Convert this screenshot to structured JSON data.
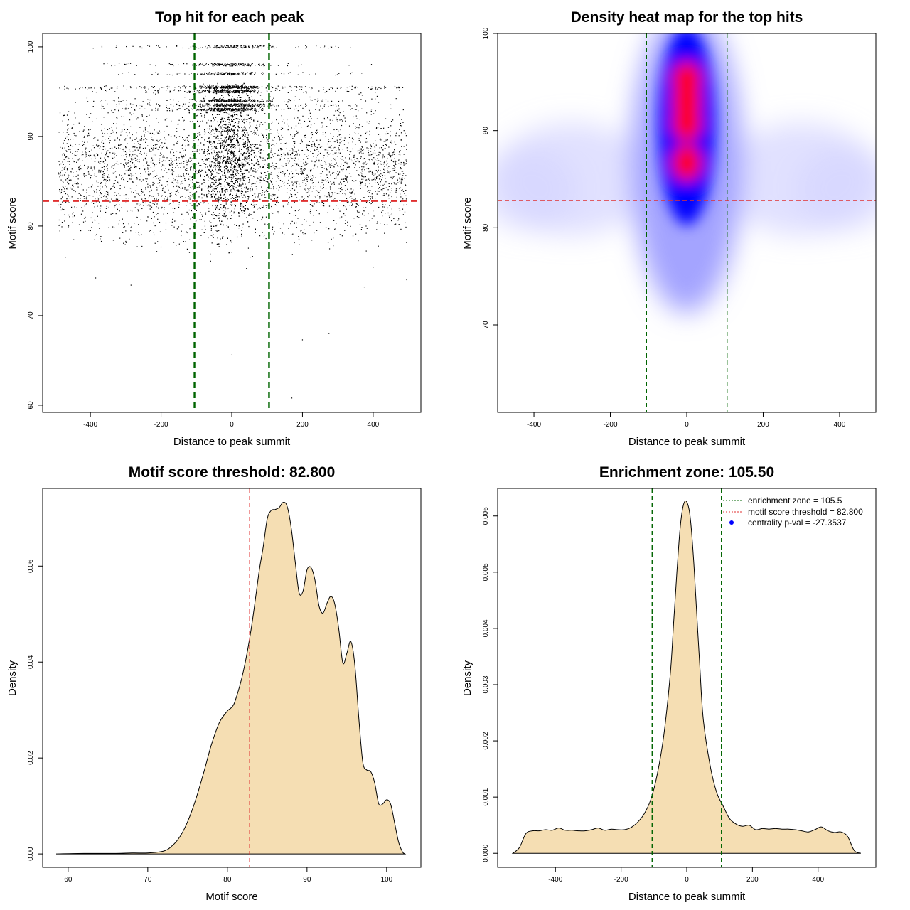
{
  "chart_data": [
    {
      "type": "scatter",
      "title": "Top hit for each peak",
      "xlabel": "Distance to peak summit",
      "ylabel": "Motif score",
      "xlim": [
        -535,
        535
      ],
      "ylim": [
        59.2,
        101.5
      ],
      "xticks": [
        -400,
        -200,
        0,
        200,
        400
      ],
      "yticks": [
        60,
        70,
        80,
        90,
        100
      ],
      "points_description_levels": [
        100,
        98,
        97,
        95.5,
        95,
        94,
        93.5,
        93
      ],
      "sparse_points": [
        {
          "x": 170,
          "y": 60.8
        },
        {
          "x": 0,
          "y": 65.6
        },
        {
          "x": 200,
          "y": 67.3
        },
        {
          "x": 275,
          "y": 68
        },
        {
          "x": -285,
          "y": 73.4
        },
        {
          "x": -385,
          "y": 74.2
        },
        {
          "x": 375,
          "y": 73.2
        },
        {
          "x": 495,
          "y": 74
        }
      ],
      "hlines": [
        {
          "y": 82.8,
          "color": "#e03030",
          "style": "dashed"
        }
      ],
      "vlines": [
        {
          "x": -105.5,
          "color": "#006400",
          "style": "dashed"
        },
        {
          "x": 105.5,
          "color": "#006400",
          "style": "dashed"
        }
      ],
      "grid": false
    },
    {
      "type": "heatmap",
      "title": "Density heat map for the top hits",
      "xlabel": "Distance to peak summit",
      "ylabel": "Motif score",
      "xlim": [
        -495,
        495
      ],
      "ylim": [
        61,
        100
      ],
      "xticks": [
        -400,
        -200,
        0,
        200,
        400
      ],
      "yticks": [
        70,
        80,
        90,
        100
      ],
      "hotspots": [
        {
          "x": 0,
          "y": 86.7,
          "level": "red"
        },
        {
          "x": 0,
          "y": 90.8,
          "level": "red"
        },
        {
          "x": 0,
          "y": 93,
          "level": "red"
        },
        {
          "x": 0,
          "y": 95.2,
          "level": "red"
        }
      ],
      "hlines": [
        {
          "y": 82.8,
          "color": "#e03030",
          "style": "dashed"
        }
      ],
      "vlines": [
        {
          "x": -105.5,
          "color": "#006400",
          "style": "dashed"
        },
        {
          "x": 105.5,
          "color": "#006400",
          "style": "dashed"
        }
      ],
      "colors": {
        "low": "#ffffff",
        "mid": "#0000ff",
        "high": "#ff0000"
      }
    },
    {
      "type": "area",
      "title": "Motif score threshold: 82.800",
      "xlabel": "Motif score",
      "ylabel": "Density",
      "xlim": [
        56.8,
        104.3
      ],
      "ylim": [
        -0.0028,
        0.0762
      ],
      "xticks": [
        60,
        70,
        80,
        90,
        100
      ],
      "yticks": [
        0.0,
        0.02,
        0.04,
        0.06
      ],
      "ytick_labels": [
        "0.00",
        "0.02",
        "0.04",
        "0.06"
      ],
      "fill": "#f5deb3",
      "x": [
        58.5,
        62,
        66,
        68,
        70,
        72,
        73,
        74,
        75,
        76,
        77,
        78,
        79,
        80,
        80.5,
        81,
        82,
        83,
        84,
        84.5,
        85,
        85.5,
        86,
        86.5,
        87,
        87.5,
        88,
        88.5,
        89,
        89.5,
        90,
        90.5,
        91,
        91.5,
        92,
        92.5,
        93,
        93.5,
        94,
        94.5,
        95,
        95.5,
        96,
        96.5,
        97,
        97.5,
        98,
        98.5,
        99,
        99.5,
        100,
        100.5,
        101,
        101.5,
        102,
        102.3
      ],
      "y": [
        0.0,
        0.0001,
        0.0001,
        0.0002,
        0.0002,
        0.0006,
        0.0016,
        0.0035,
        0.0067,
        0.0112,
        0.0168,
        0.0228,
        0.0274,
        0.0298,
        0.0305,
        0.032,
        0.038,
        0.047,
        0.059,
        0.064,
        0.0698,
        0.0716,
        0.0718,
        0.0722,
        0.0733,
        0.0725,
        0.0682,
        0.0612,
        0.0545,
        0.0548,
        0.0592,
        0.0597,
        0.0571,
        0.0518,
        0.0502,
        0.0522,
        0.0537,
        0.052,
        0.0468,
        0.0398,
        0.0418,
        0.0443,
        0.0395,
        0.0285,
        0.0192,
        0.0175,
        0.0172,
        0.0148,
        0.0105,
        0.0104,
        0.0113,
        0.0104,
        0.0065,
        0.0025,
        0.0004,
        0.0
      ],
      "vlines": [
        {
          "x": 82.8,
          "color": "#e03030",
          "style": "dashed"
        }
      ],
      "grid": false
    },
    {
      "type": "area",
      "title": "Enrichment zone: 105.50",
      "xlabel": "Distance to peak summit",
      "ylabel": "Density",
      "xlim": [
        -576,
        576
      ],
      "ylim": [
        -0.00025,
        0.00649
      ],
      "xticks": [
        -400,
        -200,
        0,
        200,
        400
      ],
      "yticks": [
        0.0,
        0.001,
        0.002,
        0.003,
        0.004,
        0.005,
        0.006
      ],
      "ytick_labels": [
        "0.000",
        "0.001",
        "0.002",
        "0.003",
        "0.004",
        "0.005",
        "0.006"
      ],
      "fill": "#f5deb3",
      "x": [
        -530,
        -510,
        -490,
        -470,
        -450,
        -430,
        -410,
        -390,
        -370,
        -350,
        -330,
        -310,
        -290,
        -270,
        -250,
        -230,
        -210,
        -190,
        -170,
        -150,
        -130,
        -110,
        -90,
        -70,
        -50,
        -40,
        -30,
        -20,
        -10,
        0,
        10,
        20,
        30,
        40,
        50,
        70,
        90,
        110,
        130,
        150,
        170,
        190,
        210,
        230,
        250,
        270,
        290,
        310,
        330,
        350,
        370,
        390,
        410,
        430,
        450,
        470,
        490,
        510,
        530
      ],
      "y": [
        0.0,
        0.0001,
        0.00035,
        0.0004,
        0.0004,
        0.00042,
        0.00041,
        0.00045,
        0.00041,
        0.00041,
        0.0004,
        0.0004,
        0.00042,
        0.00045,
        0.00041,
        0.00043,
        0.00042,
        0.00042,
        0.00046,
        0.00055,
        0.0007,
        0.00095,
        0.0014,
        0.0021,
        0.0032,
        0.0041,
        0.005,
        0.0058,
        0.0062,
        0.00625,
        0.006,
        0.0053,
        0.0043,
        0.0033,
        0.0024,
        0.0016,
        0.0011,
        0.00085,
        0.00062,
        0.00052,
        0.00048,
        0.0005,
        0.00042,
        0.00044,
        0.00043,
        0.00044,
        0.00043,
        0.00043,
        0.00042,
        0.0004,
        0.00038,
        0.00042,
        0.00047,
        0.0004,
        0.00037,
        0.00038,
        0.0003,
        5e-05,
        0.0
      ],
      "vlines": [
        {
          "x": -105.5,
          "color": "#006400",
          "style": "dashed"
        },
        {
          "x": 105.5,
          "color": "#006400",
          "style": "dashed"
        }
      ],
      "legend": {
        "position": "top-right",
        "entries": [
          {
            "label": "enrichment zone = 105.5",
            "color": "#006400",
            "style": "dotted"
          },
          {
            "label": "motif score threshold = 82.800",
            "color": "#e03030",
            "style": "dotted"
          },
          {
            "label": "centrality p-val = -27.3537",
            "color": "#0000ff",
            "style": "point"
          }
        ]
      },
      "grid": false
    }
  ]
}
